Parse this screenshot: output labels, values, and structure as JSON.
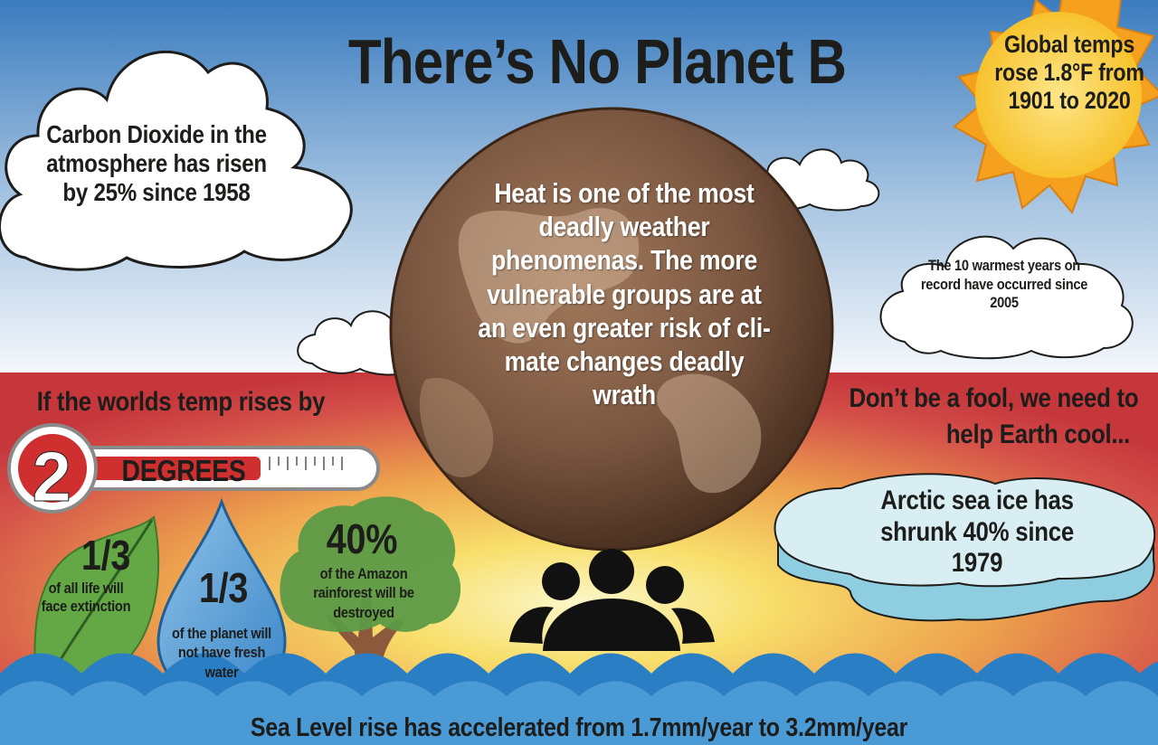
{
  "title": "There’s No Planet B",
  "co2_fact": "Carbon Dioxide in the atmosphere has risen by 25% since 1958",
  "temps_fact": "Global temps rose 1.8°F from 1901 to 2020",
  "warmest_fact": "The 10 warmest years on record have occurred since 2005",
  "heat_fact": "Heat is one of the most deadly weather phenomenas. The more vulnerable groups are at an even greater risk of cli- mate changes deadly wrath",
  "if_rises": "If the worlds temp rises by",
  "thermometer": {
    "number": "2",
    "unit": "DEGREES"
  },
  "slogan_line1": "Don’t be a fool, we need to",
  "slogan_line2": "help Earth cool...",
  "arctic_fact": "Arctic sea ice has shrunk 40% since 1979",
  "leaf": {
    "big": "1/3",
    "small": "of all life will face extinction"
  },
  "drop": {
    "big": "1/3",
    "small": "of the planet will not have fresh water"
  },
  "tree": {
    "big": "40%",
    "small": "of the Amazon rainforest will be destroyed"
  },
  "sea_level_fact": "Sea Level rise has accelerated from 1.7mm/year to 3.2mm/year",
  "icons": [
    "cloud-icon",
    "sun-icon",
    "earth-icon",
    "thermometer-icon",
    "leaf-icon",
    "water-drop-icon",
    "tree-icon",
    "people-icon",
    "ice-floe-icon",
    "wave-icon"
  ],
  "colors": {
    "sky_top": "#3a7cc0",
    "sky_bottom": "#ffffff",
    "red": "#c8363b",
    "yellow": "#f7dc67",
    "earth": "#7b5a41",
    "water": "#2a7fc4",
    "sun": "#f9c933"
  }
}
